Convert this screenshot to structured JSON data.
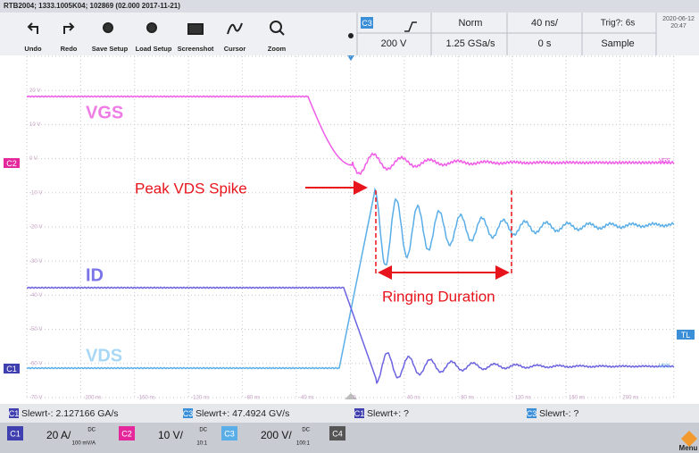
{
  "title_bar": "RTB2004; 1333.1005K04; 102869 (02.000 2017-11-21)",
  "toolbar": [
    "Undo",
    "Redo",
    "Save Setup",
    "Load Setup",
    "Screenshot",
    "Cursor",
    "Zoom"
  ],
  "acquisition": {
    "trigger_source": "C3",
    "trigger_mode": "Norm",
    "timebase": "40 ns/",
    "trigger_status": "Trig?: 6s",
    "trigger_level": "200 V",
    "sample_rate": "1.25 GSa/s",
    "trigger_position": "0 s",
    "acquisition_mode": "Sample"
  },
  "clock": {
    "date": "2020-06-12",
    "time": "20:47"
  },
  "grid": {
    "y_labels": [
      "20 V",
      "10 V",
      "0 V",
      "-10 V",
      "-20 V",
      "-30 V",
      "-40 V",
      "-50 V",
      "-60 V",
      "-70 V"
    ],
    "x_labels": [
      "-200 ns",
      "-160 ns",
      "-120 ns",
      "-80 ns",
      "-40 ns",
      "0",
      "40 ns",
      "80 ns",
      "120 ns",
      "160 ns",
      "200 ns"
    ]
  },
  "annotations": {
    "vgs": "VGS",
    "id": "ID",
    "vds": "VDS",
    "peak": "Peak VDS Spike",
    "ringing": "Ringing Duration"
  },
  "markers": {
    "c2": "C2",
    "c1": "C1",
    "tl": "TL",
    "trace_vgs": "VGS",
    "trace_vds": "VDS"
  },
  "measurements": [
    {
      "channel": "C1",
      "text": "Slewrt-: 2.127166 GA/s"
    },
    {
      "channel": "C3",
      "text": "Slewrt+: 47.4924 GV/s"
    },
    {
      "channel": "C1",
      "text": "Slewrt+: ?"
    },
    {
      "channel": "C3",
      "text": "Slewrt-: ?"
    }
  ],
  "channels": [
    {
      "name": "C1",
      "scale": "20 A/",
      "coupling": "DC",
      "probe": "100 mV/A"
    },
    {
      "name": "C2",
      "scale": "10 V/",
      "coupling": "DC",
      "probe": "10:1"
    },
    {
      "name": "C3",
      "scale": "200 V/",
      "coupling": "DC",
      "probe": "100:1"
    },
    {
      "name": "C4"
    }
  ],
  "menu": "Menu"
}
